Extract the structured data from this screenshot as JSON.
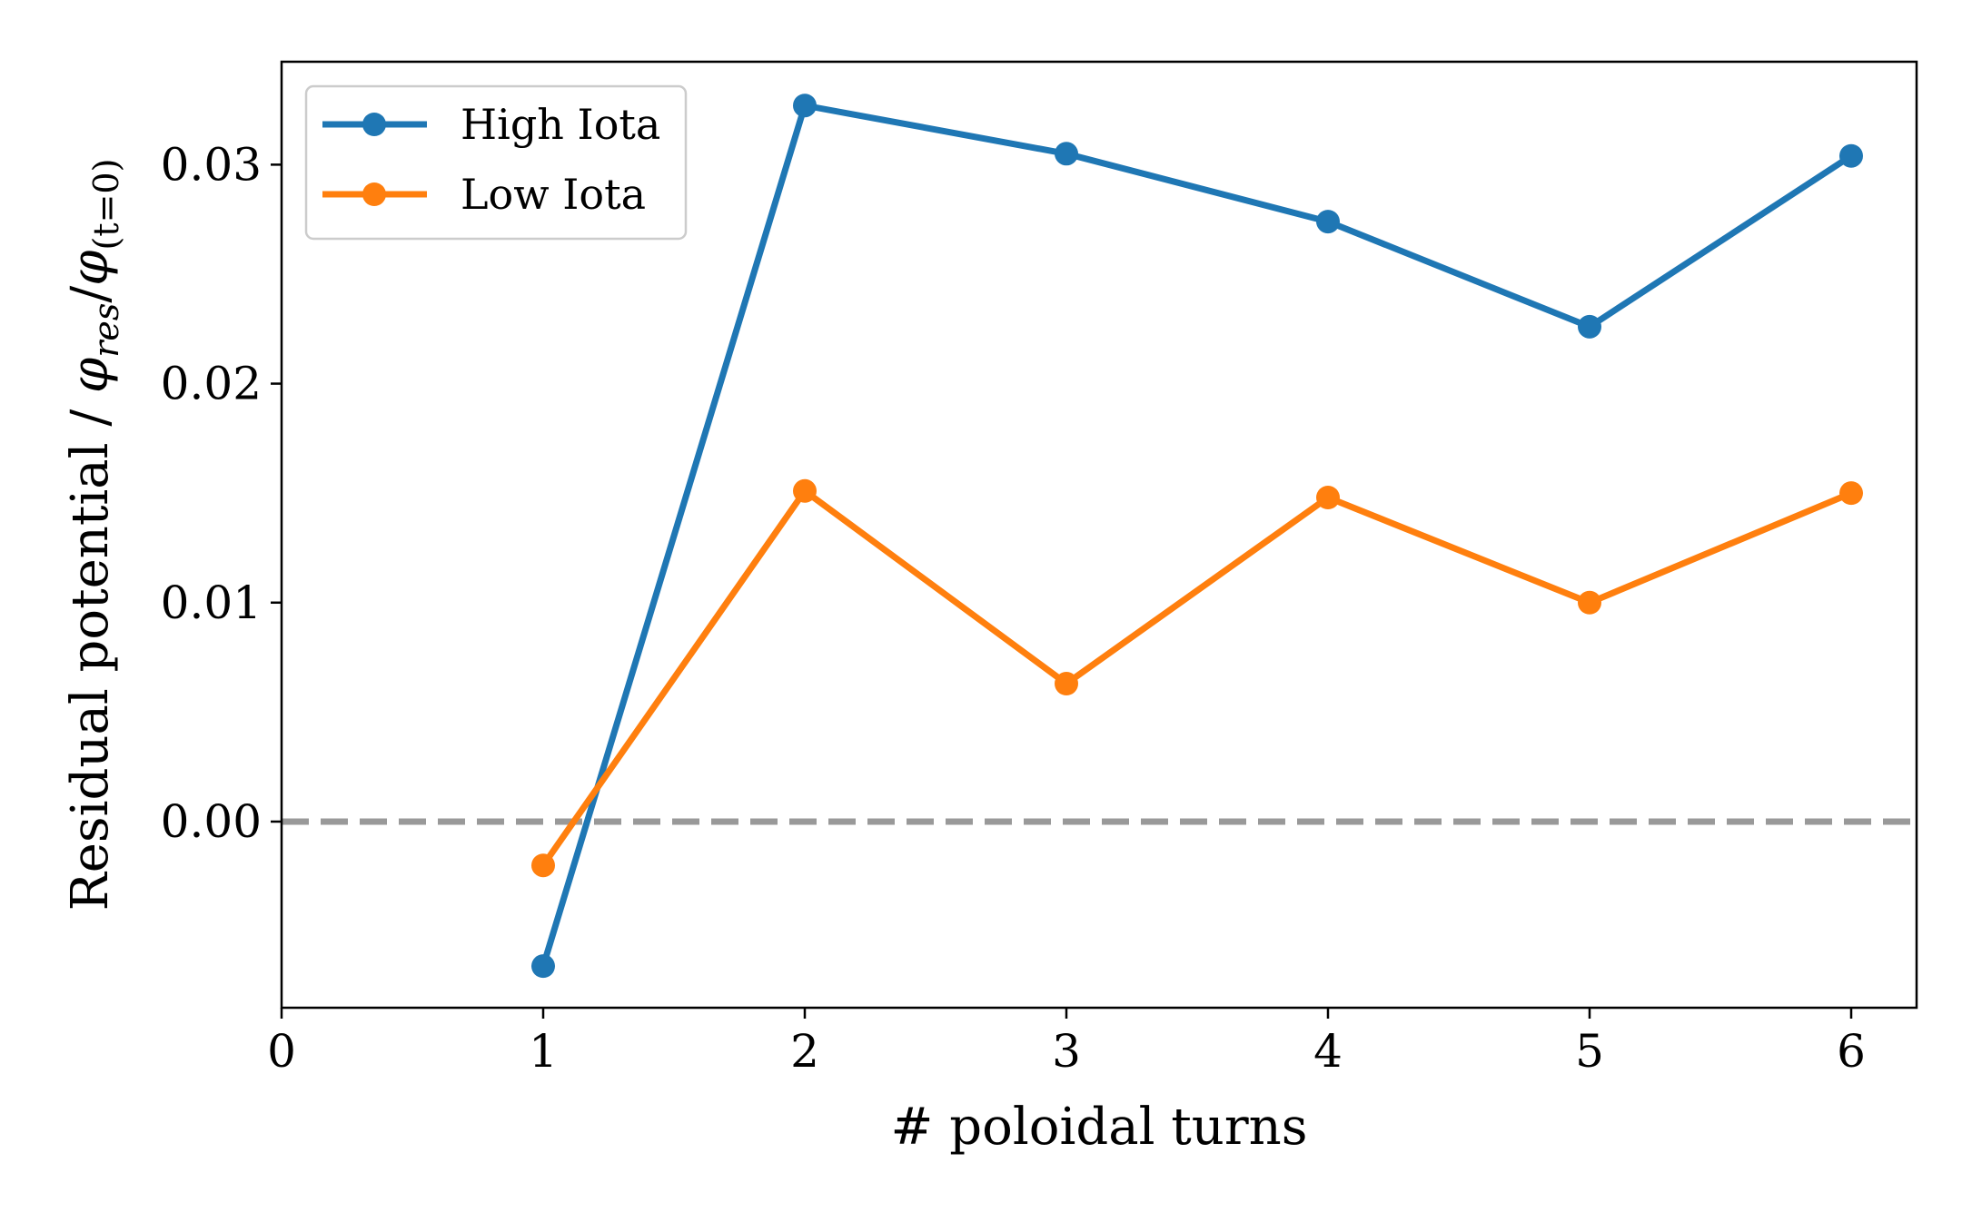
{
  "chart_data": {
    "type": "line",
    "title": "",
    "xlabel": "# poloidal turns",
    "ylabel": "Residual potential / φres/φ(t=0)",
    "ylabel_parts": {
      "prefix": "Residual potential / ",
      "phi": "φ",
      "sub1": "res",
      "slash": "/",
      "sub2": "(t=0)"
    },
    "xlim": [
      0,
      6.25
    ],
    "ylim": [
      -0.0085,
      0.0347
    ],
    "xticks": [
      0,
      1,
      2,
      3,
      4,
      5,
      6
    ],
    "xtick_labels": [
      "0",
      "1",
      "2",
      "3",
      "4",
      "5",
      "6"
    ],
    "yticks": [
      0.0,
      0.01,
      0.02,
      0.03
    ],
    "ytick_labels": [
      "0.00",
      "0.01",
      "0.02",
      "0.03"
    ],
    "grid": false,
    "legend_position": "top-left",
    "reference_line": {
      "y": 0.0,
      "style": "dashed",
      "color": "#999999"
    },
    "x": [
      1,
      2,
      3,
      4,
      5,
      6
    ],
    "series": [
      {
        "name": "High Iota",
        "color": "#1f77b4",
        "values": [
          -0.0066,
          0.0327,
          0.0305,
          0.0274,
          0.0226,
          0.0304
        ]
      },
      {
        "name": "Low Iota",
        "color": "#ff7f0e",
        "values": [
          -0.002,
          0.0151,
          0.0063,
          0.0148,
          0.01,
          0.015
        ]
      }
    ]
  }
}
